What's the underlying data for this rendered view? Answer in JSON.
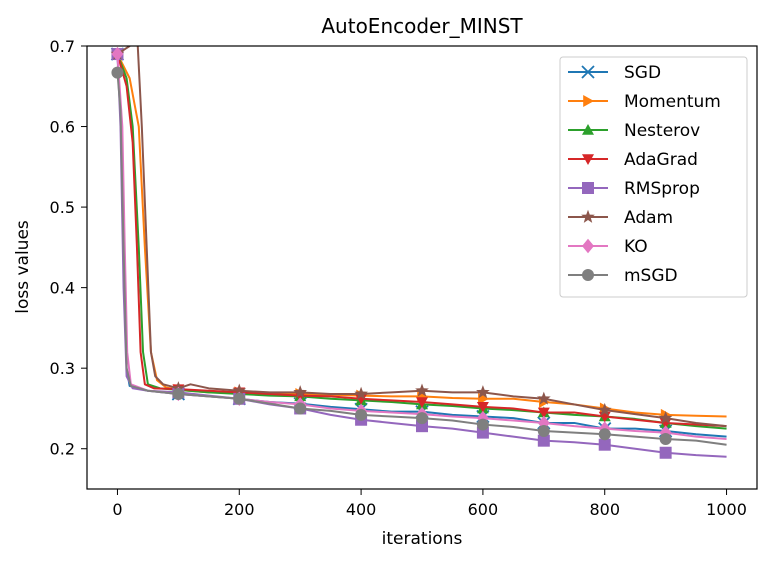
{
  "chart_data": {
    "type": "line",
    "title": "AutoEncoder_MINST",
    "xlabel": "iterations",
    "ylabel": "loss values",
    "xlim": [
      -50,
      1050
    ],
    "ylim": [
      0.15,
      0.7
    ],
    "xticks": [
      0,
      200,
      400,
      600,
      800,
      1000
    ],
    "yticks": [
      0.2,
      0.3,
      0.4,
      0.5,
      0.6,
      0.7
    ],
    "xtick_labels": [
      "0",
      "200",
      "400",
      "600",
      "800",
      "1000"
    ],
    "ytick_labels": [
      "0.2",
      "0.3",
      "0.4",
      "0.5",
      "0.6",
      "0.7"
    ],
    "legend_position": "top-right",
    "grid": false,
    "marker_x": [
      0,
      100,
      200,
      300,
      400,
      500,
      600,
      700,
      800,
      900
    ],
    "series": [
      {
        "name": "SGD",
        "color": "#1f77b4",
        "marker": "x",
        "points": [
          [
            0,
            0.69
          ],
          [
            5,
            0.62
          ],
          [
            10,
            0.45
          ],
          [
            15,
            0.3
          ],
          [
            20,
            0.278
          ],
          [
            50,
            0.272
          ],
          [
            100,
            0.268
          ],
          [
            150,
            0.265
          ],
          [
            200,
            0.262
          ],
          [
            250,
            0.258
          ],
          [
            300,
            0.256
          ],
          [
            350,
            0.252
          ],
          [
            400,
            0.249
          ],
          [
            450,
            0.246
          ],
          [
            500,
            0.246
          ],
          [
            550,
            0.242
          ],
          [
            600,
            0.24
          ],
          [
            650,
            0.238
          ],
          [
            700,
            0.232
          ],
          [
            750,
            0.232
          ],
          [
            800,
            0.225
          ],
          [
            850,
            0.225
          ],
          [
            900,
            0.222
          ],
          [
            950,
            0.218
          ],
          [
            1000,
            0.215
          ]
        ]
      },
      {
        "name": "Momentum",
        "color": "#ff7f0e",
        "marker": "triangle-right",
        "points": [
          [
            0,
            0.69
          ],
          [
            20,
            0.66
          ],
          [
            35,
            0.6
          ],
          [
            45,
            0.45
          ],
          [
            55,
            0.32
          ],
          [
            65,
            0.285
          ],
          [
            80,
            0.276
          ],
          [
            100,
            0.273
          ],
          [
            150,
            0.27
          ],
          [
            200,
            0.27
          ],
          [
            250,
            0.268
          ],
          [
            300,
            0.268
          ],
          [
            350,
            0.267
          ],
          [
            400,
            0.266
          ],
          [
            450,
            0.265
          ],
          [
            500,
            0.265
          ],
          [
            550,
            0.263
          ],
          [
            600,
            0.262
          ],
          [
            650,
            0.262
          ],
          [
            700,
            0.258
          ],
          [
            750,
            0.255
          ],
          [
            800,
            0.25
          ],
          [
            850,
            0.245
          ],
          [
            900,
            0.242
          ],
          [
            950,
            0.241
          ],
          [
            1000,
            0.24
          ]
        ]
      },
      {
        "name": "Nesterov",
        "color": "#2ca02c",
        "marker": "triangle-up",
        "points": [
          [
            0,
            0.69
          ],
          [
            15,
            0.66
          ],
          [
            25,
            0.6
          ],
          [
            35,
            0.45
          ],
          [
            42,
            0.32
          ],
          [
            50,
            0.28
          ],
          [
            70,
            0.275
          ],
          [
            100,
            0.273
          ],
          [
            150,
            0.27
          ],
          [
            200,
            0.268
          ],
          [
            250,
            0.266
          ],
          [
            300,
            0.265
          ],
          [
            350,
            0.262
          ],
          [
            400,
            0.26
          ],
          [
            450,
            0.258
          ],
          [
            500,
            0.255
          ],
          [
            550,
            0.253
          ],
          [
            600,
            0.25
          ],
          [
            650,
            0.248
          ],
          [
            700,
            0.245
          ],
          [
            750,
            0.242
          ],
          [
            800,
            0.24
          ],
          [
            850,
            0.237
          ],
          [
            900,
            0.232
          ],
          [
            950,
            0.228
          ],
          [
            1000,
            0.225
          ]
        ]
      },
      {
        "name": "AdaGrad",
        "color": "#d62728",
        "marker": "triangle-down",
        "points": [
          [
            0,
            0.69
          ],
          [
            15,
            0.65
          ],
          [
            25,
            0.58
          ],
          [
            32,
            0.45
          ],
          [
            38,
            0.32
          ],
          [
            45,
            0.28
          ],
          [
            60,
            0.275
          ],
          [
            100,
            0.274
          ],
          [
            150,
            0.272
          ],
          [
            200,
            0.27
          ],
          [
            250,
            0.268
          ],
          [
            300,
            0.266
          ],
          [
            350,
            0.265
          ],
          [
            400,
            0.262
          ],
          [
            450,
            0.26
          ],
          [
            500,
            0.258
          ],
          [
            550,
            0.255
          ],
          [
            600,
            0.252
          ],
          [
            650,
            0.25
          ],
          [
            700,
            0.245
          ],
          [
            750,
            0.245
          ],
          [
            800,
            0.24
          ],
          [
            850,
            0.236
          ],
          [
            900,
            0.232
          ],
          [
            950,
            0.23
          ],
          [
            1000,
            0.228
          ]
        ]
      },
      {
        "name": "RMSprop",
        "color": "#9467bd",
        "marker": "square",
        "points": [
          [
            0,
            0.69
          ],
          [
            5,
            0.6
          ],
          [
            10,
            0.4
          ],
          [
            15,
            0.29
          ],
          [
            25,
            0.275
          ],
          [
            50,
            0.272
          ],
          [
            100,
            0.27
          ],
          [
            150,
            0.266
          ],
          [
            200,
            0.262
          ],
          [
            250,
            0.255
          ],
          [
            300,
            0.25
          ],
          [
            350,
            0.242
          ],
          [
            400,
            0.236
          ],
          [
            450,
            0.232
          ],
          [
            500,
            0.228
          ],
          [
            550,
            0.225
          ],
          [
            600,
            0.22
          ],
          [
            650,
            0.215
          ],
          [
            700,
            0.21
          ],
          [
            750,
            0.208
          ],
          [
            800,
            0.205
          ],
          [
            850,
            0.2
          ],
          [
            900,
            0.195
          ],
          [
            950,
            0.192
          ],
          [
            1000,
            0.19
          ]
        ]
      },
      {
        "name": "Adam",
        "color": "#8c564b",
        "marker": "star",
        "points": [
          [
            0,
            0.69
          ],
          [
            20,
            0.7
          ],
          [
            25,
            0.75
          ],
          [
            30,
            0.75
          ],
          [
            40,
            0.6
          ],
          [
            48,
            0.45
          ],
          [
            55,
            0.32
          ],
          [
            62,
            0.29
          ],
          [
            75,
            0.28
          ],
          [
            100,
            0.275
          ],
          [
            120,
            0.28
          ],
          [
            150,
            0.275
          ],
          [
            200,
            0.272
          ],
          [
            250,
            0.27
          ],
          [
            300,
            0.27
          ],
          [
            350,
            0.268
          ],
          [
            400,
            0.268
          ],
          [
            450,
            0.27
          ],
          [
            500,
            0.272
          ],
          [
            550,
            0.27
          ],
          [
            600,
            0.27
          ],
          [
            650,
            0.265
          ],
          [
            700,
            0.262
          ],
          [
            750,
            0.255
          ],
          [
            800,
            0.248
          ],
          [
            850,
            0.243
          ],
          [
            900,
            0.238
          ],
          [
            950,
            0.232
          ],
          [
            1000,
            0.228
          ]
        ]
      },
      {
        "name": "KO",
        "color": "#e377c2",
        "marker": "diamond",
        "points": [
          [
            0,
            0.69
          ],
          [
            8,
            0.6
          ],
          [
            12,
            0.45
          ],
          [
            16,
            0.32
          ],
          [
            22,
            0.28
          ],
          [
            50,
            0.272
          ],
          [
            100,
            0.268
          ],
          [
            150,
            0.265
          ],
          [
            200,
            0.262
          ],
          [
            250,
            0.258
          ],
          [
            300,
            0.255
          ],
          [
            350,
            0.25
          ],
          [
            400,
            0.247
          ],
          [
            450,
            0.245
          ],
          [
            500,
            0.243
          ],
          [
            550,
            0.24
          ],
          [
            600,
            0.238
          ],
          [
            650,
            0.235
          ],
          [
            700,
            0.232
          ],
          [
            750,
            0.228
          ],
          [
            800,
            0.225
          ],
          [
            850,
            0.222
          ],
          [
            900,
            0.22
          ],
          [
            950,
            0.215
          ],
          [
            1000,
            0.212
          ]
        ]
      },
      {
        "name": "mSGD",
        "color": "#7f7f7f",
        "marker": "circle",
        "points": [
          [
            0,
            0.667
          ],
          [
            5,
            0.62
          ],
          [
            10,
            0.45
          ],
          [
            15,
            0.3
          ],
          [
            22,
            0.278
          ],
          [
            50,
            0.272
          ],
          [
            100,
            0.268
          ],
          [
            150,
            0.265
          ],
          [
            200,
            0.262
          ],
          [
            250,
            0.256
          ],
          [
            300,
            0.25
          ],
          [
            350,
            0.247
          ],
          [
            400,
            0.242
          ],
          [
            450,
            0.24
          ],
          [
            500,
            0.238
          ],
          [
            550,
            0.235
          ],
          [
            600,
            0.23
          ],
          [
            650,
            0.227
          ],
          [
            700,
            0.222
          ],
          [
            750,
            0.22
          ],
          [
            800,
            0.218
          ],
          [
            850,
            0.215
          ],
          [
            900,
            0.212
          ],
          [
            950,
            0.21
          ],
          [
            1000,
            0.205
          ]
        ]
      }
    ]
  }
}
